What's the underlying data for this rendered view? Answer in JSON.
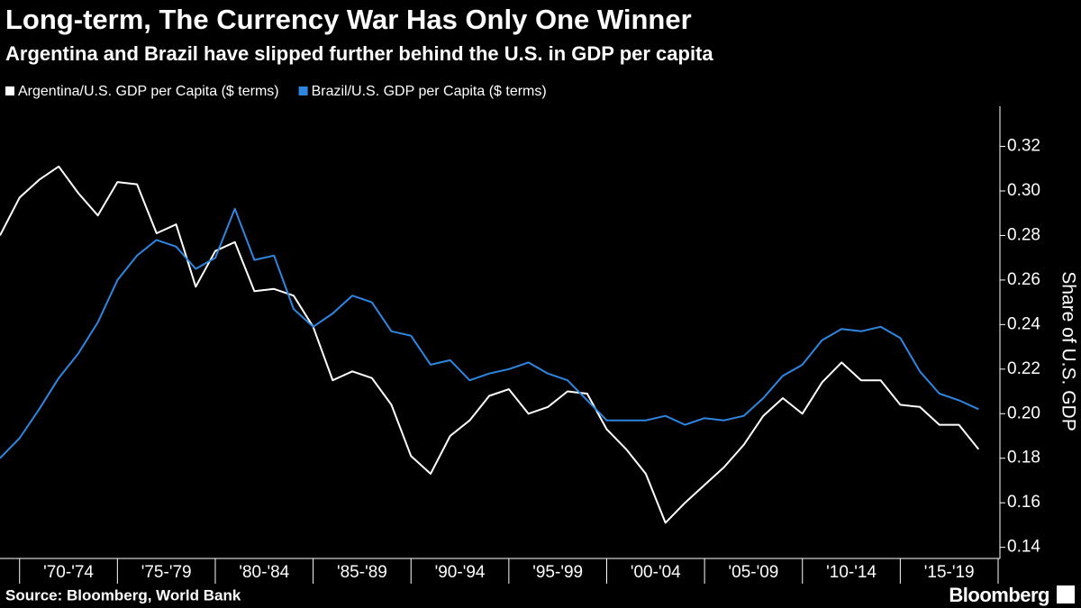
{
  "chart_data": {
    "type": "line",
    "title": "Long-term, The Currency War Has Only One Winner",
    "subtitle": "Argentina and Brazil have slipped further behind the U.S. in GDP per capita",
    "y_axis_label": "Share of U.S. GDP",
    "source": "Source: Bloomberg, World Bank",
    "brand": "Bloomberg",
    "x": [
      1969,
      1970,
      1971,
      1972,
      1973,
      1974,
      1975,
      1976,
      1977,
      1978,
      1979,
      1980,
      1981,
      1982,
      1983,
      1984,
      1985,
      1986,
      1987,
      1988,
      1989,
      1990,
      1991,
      1992,
      1993,
      1994,
      1995,
      1996,
      1997,
      1998,
      1999,
      2000,
      2001,
      2002,
      2003,
      2004,
      2005,
      2006,
      2007,
      2008,
      2009,
      2010,
      2011,
      2012,
      2013,
      2014,
      2015,
      2016,
      2017,
      2018,
      2019
    ],
    "series": [
      {
        "name": "Argentina/U.S. GDP per Capita ($ terms)",
        "color": "#ffffff",
        "values": [
          0.28,
          0.297,
          0.305,
          0.311,
          0.299,
          0.289,
          0.304,
          0.303,
          0.281,
          0.285,
          0.257,
          0.273,
          0.277,
          0.255,
          0.256,
          0.253,
          0.239,
          0.215,
          0.219,
          0.216,
          0.204,
          0.181,
          0.173,
          0.19,
          0.197,
          0.208,
          0.211,
          0.2,
          0.203,
          0.21,
          0.209,
          0.193,
          0.184,
          0.173,
          0.151,
          0.16,
          0.168,
          0.176,
          0.186,
          0.199,
          0.207,
          0.2,
          0.214,
          0.223,
          0.215,
          0.215,
          0.204,
          0.203,
          0.195,
          0.195,
          0.184
        ]
      },
      {
        "name": "Brazil/U.S. GDP per Capita ($ terms)",
        "color": "#2f86e0",
        "values": [
          0.18,
          0.189,
          0.202,
          0.216,
          0.227,
          0.241,
          0.26,
          0.271,
          0.278,
          0.275,
          0.265,
          0.27,
          0.292,
          0.269,
          0.271,
          0.247,
          0.239,
          0.245,
          0.253,
          0.25,
          0.237,
          0.235,
          0.222,
          0.224,
          0.215,
          0.218,
          0.22,
          0.223,
          0.218,
          0.215,
          0.206,
          0.197,
          0.197,
          0.197,
          0.199,
          0.195,
          0.198,
          0.197,
          0.199,
          0.207,
          0.217,
          0.222,
          0.233,
          0.238,
          0.237,
          0.239,
          0.234,
          0.219,
          0.209,
          0.206,
          0.202
        ]
      }
    ],
    "xlim": [
      1969,
      2020
    ],
    "xticks": [
      {
        "value": 1972.5,
        "label": "'70-'74"
      },
      {
        "value": 1977.5,
        "label": "'75-'79"
      },
      {
        "value": 1982.5,
        "label": "'80-'84"
      },
      {
        "value": 1987.5,
        "label": "'85-'89"
      },
      {
        "value": 1992.5,
        "label": "'90-'94"
      },
      {
        "value": 1997.5,
        "label": "'95-'99"
      },
      {
        "value": 2002.5,
        "label": "'00-'04"
      },
      {
        "value": 2007.5,
        "label": "'05-'09"
      },
      {
        "value": 2012.5,
        "label": "'10-'14"
      },
      {
        "value": 2017.5,
        "label": "'15-'19"
      }
    ],
    "ylim": [
      0.135,
      0.338
    ],
    "yticks": [
      0.14,
      0.16,
      0.18,
      {
        "value": 0.2,
        "label": "0.20"
      },
      0.22,
      0.24,
      0.26,
      0.28,
      {
        "value": 0.3,
        "label": "0.30"
      },
      0.32
    ],
    "y_axis_side": "right",
    "grid": false
  }
}
